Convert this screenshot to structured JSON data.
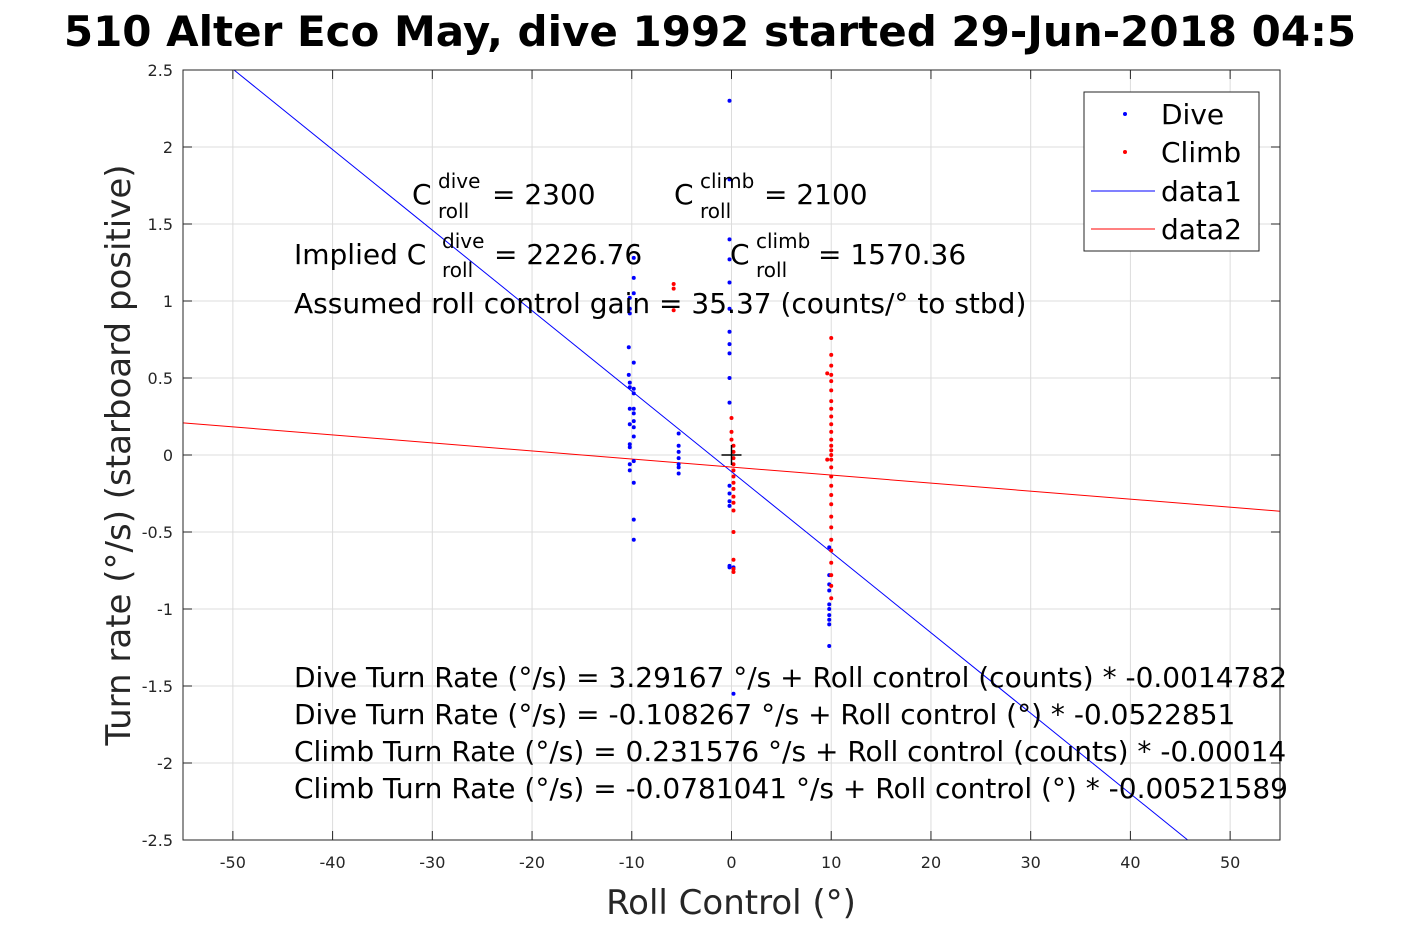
{
  "chart_data": {
    "type": "scatter",
    "title": "510 Alter Eco May, dive 1992 started 29-Jun-2018 04:5",
    "xlabel": "Roll Control (°)",
    "ylabel": "Turn rate (°/s) (starboard positive)",
    "xlim": [
      -55,
      55
    ],
    "ylim": [
      -2.5,
      2.5
    ],
    "x_ticks": [
      "-50",
      "-40",
      "-30",
      "-20",
      "-10",
      "0",
      "10",
      "20",
      "30",
      "40",
      "50"
    ],
    "y_ticks": [
      "-2.5",
      "-2",
      "-1.5",
      "-1",
      "-0.5",
      "0",
      "0.5",
      "1",
      "1.5",
      "2",
      "2.5"
    ],
    "grid": true,
    "legend_position": "top-right",
    "colors": {
      "dive": "#0000ff",
      "climb": "#ff0000",
      "axis": "#262626",
      "grid": "#dcdcdc"
    },
    "series": [
      {
        "name": "Dive",
        "kind": "points",
        "color": "#0000ff",
        "points": [
          [
            -10.2,
            1.02
          ],
          [
            -10.2,
            0.95
          ],
          [
            -10.2,
            0.92
          ],
          [
            -10.3,
            0.7
          ],
          [
            -10.3,
            0.52
          ],
          [
            -10.2,
            0.47
          ],
          [
            -10.2,
            0.44
          ],
          [
            -10.2,
            0.3
          ],
          [
            -10.2,
            0.2
          ],
          [
            -10.2,
            0.07
          ],
          [
            -10.2,
            0.05
          ],
          [
            -10.2,
            -0.06
          ],
          [
            -10.2,
            -0.1
          ],
          [
            -9.8,
            1.28
          ],
          [
            -9.8,
            1.15
          ],
          [
            -9.8,
            1.05
          ],
          [
            -9.8,
            0.6
          ],
          [
            -9.8,
            0.43
          ],
          [
            -9.8,
            0.4
          ],
          [
            -9.8,
            0.3
          ],
          [
            -9.8,
            0.27
          ],
          [
            -9.8,
            0.22
          ],
          [
            -9.8,
            0.18
          ],
          [
            -9.8,
            0.12
          ],
          [
            -9.8,
            -0.04
          ],
          [
            -9.8,
            -0.18
          ],
          [
            -9.8,
            -0.42
          ],
          [
            -9.8,
            -0.55
          ],
          [
            -5.3,
            0.14
          ],
          [
            -5.3,
            0.06
          ],
          [
            -5.3,
            0.02
          ],
          [
            -5.3,
            -0.02
          ],
          [
            -5.3,
            -0.06
          ],
          [
            -5.3,
            -0.08
          ],
          [
            -5.3,
            -0.12
          ],
          [
            -0.2,
            2.3
          ],
          [
            -0.2,
            1.79
          ],
          [
            -0.2,
            1.4
          ],
          [
            -0.2,
            1.27
          ],
          [
            -0.2,
            1.12
          ],
          [
            -0.2,
            0.95
          ],
          [
            -0.2,
            0.8
          ],
          [
            -0.2,
            0.72
          ],
          [
            -0.2,
            0.66
          ],
          [
            -0.2,
            0.5
          ],
          [
            -0.2,
            0.34
          ],
          [
            -0.2,
            -0.2
          ],
          [
            -0.2,
            -0.25
          ],
          [
            -0.2,
            -0.3
          ],
          [
            -0.2,
            -0.33
          ],
          [
            -0.2,
            -0.72
          ],
          [
            -0.2,
            -0.73
          ],
          [
            0.2,
            -1.55
          ],
          [
            0.2,
            -0.73
          ],
          [
            9.8,
            -0.6
          ],
          [
            9.8,
            -0.78
          ],
          [
            9.8,
            -0.84
          ],
          [
            9.8,
            -0.88
          ],
          [
            9.8,
            -0.97
          ],
          [
            9.8,
            -1.0
          ],
          [
            9.8,
            -1.04
          ],
          [
            9.8,
            -1.07
          ],
          [
            9.8,
            -1.1
          ],
          [
            9.8,
            -1.24
          ]
        ]
      },
      {
        "name": "Climb",
        "kind": "points",
        "color": "#ff0000",
        "points": [
          [
            -5.8,
            1.11
          ],
          [
            -5.8,
            1.08
          ],
          [
            -5.8,
            0.94
          ],
          [
            0.0,
            0.24
          ],
          [
            0.0,
            0.15
          ],
          [
            0.0,
            0.1
          ],
          [
            0.2,
            0.06
          ],
          [
            0.2,
            0.02
          ],
          [
            0.2,
            -0.02
          ],
          [
            0.2,
            -0.06
          ],
          [
            0.2,
            -0.1
          ],
          [
            0.2,
            -0.14
          ],
          [
            0.2,
            -0.18
          ],
          [
            0.2,
            -0.22
          ],
          [
            0.2,
            -0.27
          ],
          [
            0.2,
            -0.31
          ],
          [
            0.2,
            -0.36
          ],
          [
            0.2,
            -0.5
          ],
          [
            0.2,
            -0.68
          ],
          [
            0.2,
            -0.74
          ],
          [
            0.2,
            -0.76
          ],
          [
            9.6,
            0.53
          ],
          [
            9.6,
            -0.03
          ],
          [
            10.0,
            0.76
          ],
          [
            10.0,
            0.65
          ],
          [
            10.0,
            0.58
          ],
          [
            10.0,
            0.52
          ],
          [
            10.0,
            0.48
          ],
          [
            10.0,
            0.42
          ],
          [
            10.0,
            0.35
          ],
          [
            10.0,
            0.3
          ],
          [
            10.0,
            0.25
          ],
          [
            10.0,
            0.2
          ],
          [
            10.0,
            0.15
          ],
          [
            10.0,
            0.1
          ],
          [
            10.0,
            0.06
          ],
          [
            10.0,
            0.03
          ],
          [
            10.0,
            0.0
          ],
          [
            10.0,
            -0.03
          ],
          [
            10.0,
            -0.08
          ],
          [
            10.0,
            -0.14
          ],
          [
            10.0,
            -0.2
          ],
          [
            10.0,
            -0.26
          ],
          [
            10.0,
            -0.32
          ],
          [
            10.0,
            -0.4
          ],
          [
            10.0,
            -0.47
          ],
          [
            10.0,
            -0.55
          ],
          [
            10.0,
            -0.62
          ],
          [
            10.0,
            -0.7
          ],
          [
            10.0,
            -0.78
          ],
          [
            10.0,
            -0.85
          ],
          [
            10.0,
            -0.93
          ]
        ]
      },
      {
        "name": "data1",
        "kind": "line",
        "color": "#0000ff",
        "intercept": -0.108267,
        "slope": -0.0522851
      },
      {
        "name": "data2",
        "kind": "line",
        "color": "#ff0000",
        "intercept": -0.0781041,
        "slope": -0.00521589
      }
    ],
    "origin_marker": {
      "x": 0,
      "y": 0,
      "color": "#000000"
    },
    "annotations": {
      "c_dive_prefix": "C",
      "c_dive_sup": "dive",
      "c_dive_sub": "roll",
      "c_dive_value": " = 2300",
      "c_climb_prefix": "C",
      "c_climb_sup": "climb",
      "c_climb_sub": "roll",
      "c_climb_value": " = 2100",
      "implied_prefix": "Implied C",
      "implied_dive_sup": "dive",
      "implied_dive_sub": "roll",
      "implied_dive_value": " = 2226.76",
      "implied_climb_prefix": "C",
      "implied_climb_sup": "climb",
      "implied_climb_sub": "roll",
      "implied_climb_value": " = 1570.36",
      "gain": "Assumed roll control gain = 35.37 (counts/° to stbd)",
      "eq1": "Dive Turn Rate (°/s) = 3.29167 °/s + Roll control (counts) * -0.0014782",
      "eq2": "Dive Turn Rate (°/s) = -0.108267 °/s + Roll control (°) * -0.0522851",
      "eq3": "Climb Turn Rate (°/s) = 0.231576 °/s + Roll control (counts) * -0.00014",
      "eq4": "Climb Turn Rate (°/s) = -0.0781041 °/s + Roll control (°) * -0.00521589"
    }
  }
}
